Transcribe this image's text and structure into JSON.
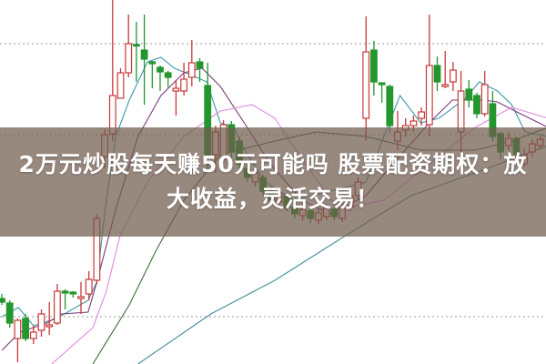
{
  "headline": "2万元炒股每天赚50元可能吗 股票配资期权：放大收益，灵活交易！",
  "colors": {
    "up": "#c8383a",
    "down": "#23962d",
    "overlay": "#705c4e",
    "grid": "#9a9a9a"
  },
  "chart_data": {
    "type": "candlestick",
    "title": "",
    "grid": true,
    "gridlines": [
      352,
      252,
      52
    ],
    "candles": [
      [
        0,
        72,
        68,
        77,
        65
      ],
      [
        1,
        67,
        45,
        70,
        40
      ],
      [
        2,
        28,
        48,
        50,
        2
      ],
      [
        3,
        50,
        28,
        55,
        25
      ],
      [
        4,
        28,
        35,
        42,
        22
      ],
      [
        5,
        37,
        55,
        60,
        30
      ],
      [
        6,
        41,
        43,
        68,
        32
      ],
      [
        7,
        45,
        80,
        88,
        43
      ],
      [
        8,
        80,
        78,
        82,
        60
      ],
      [
        9,
        79,
        77,
        80,
        73
      ],
      [
        10,
        72,
        74,
        90,
        55
      ],
      [
        11,
        77,
        93,
        102,
        70
      ],
      [
        12,
        92,
        160,
        165,
        88
      ],
      [
        13,
        228,
        252,
        258,
        215
      ],
      [
        14,
        253,
        295,
        400,
        245
      ],
      [
        15,
        292,
        320,
        325,
        292
      ],
      [
        16,
        320,
        352,
        384,
        315
      ],
      [
        17,
        351,
        350,
        376,
        310
      ],
      [
        18,
        345,
        335,
        384,
        285
      ],
      [
        19,
        332,
        330,
        333,
        303
      ],
      [
        20,
        326,
        321,
        328,
        300
      ],
      [
        21,
        320,
        315,
        322,
        304
      ],
      [
        22,
        300,
        303,
        312,
        273
      ],
      [
        23,
        300,
        313,
        331,
        295
      ],
      [
        24,
        315,
        331,
        356,
        305
      ],
      [
        25,
        332,
        325,
        336,
        310
      ],
      [
        26,
        306,
        230,
        331,
        210
      ],
      [
        27,
        230,
        255,
        262,
        210
      ],
      [
        28,
        225,
        263,
        268,
        220
      ],
      [
        29,
        263,
        233,
        267,
        225
      ],
      [
        30,
        245,
        220,
        250,
        215
      ],
      [
        31,
        215,
        205,
        220,
        200
      ],
      [
        32,
        200,
        210,
        215,
        195
      ],
      [
        33,
        205,
        190,
        208,
        185
      ],
      [
        34,
        190,
        180,
        195,
        175
      ],
      [
        35,
        178,
        188,
        192,
        172
      ],
      [
        36,
        185,
        172,
        188,
        168
      ],
      [
        37,
        172,
        165,
        176,
        160
      ],
      [
        38,
        163,
        170,
        175,
        158
      ],
      [
        39,
        168,
        160,
        171,
        155
      ],
      [
        40,
        158,
        166,
        170,
        154
      ],
      [
        41,
        162,
        172,
        176,
        158
      ],
      [
        42,
        170,
        162,
        174,
        158
      ],
      [
        43,
        160,
        175,
        178,
        156
      ],
      [
        44,
        172,
        185,
        190,
        168
      ],
      [
        45,
        185,
        200,
        205,
        180
      ],
      [
        46,
        270,
        343,
        382,
        245
      ],
      [
        47,
        345,
        310,
        355,
        295
      ],
      [
        48,
        309,
        307,
        309,
        287
      ],
      [
        49,
        305,
        262,
        307,
        255
      ],
      [
        50,
        245,
        255,
        278,
        235
      ],
      [
        51,
        257,
        262,
        270,
        250
      ],
      [
        52,
        262,
        267,
        273,
        255
      ],
      [
        53,
        270,
        277,
        282,
        262
      ],
      [
        54,
        263,
        328,
        384,
        250
      ],
      [
        55,
        328,
        310,
        338,
        300
      ],
      [
        56,
        305,
        307,
        344,
        303
      ],
      [
        57,
        310,
        323,
        332,
        300
      ],
      [
        58,
        255,
        300,
        322,
        232
      ],
      [
        59,
        302,
        290,
        312,
        282
      ],
      [
        60,
        295,
        275,
        298,
        270
      ],
      [
        61,
        275,
        307,
        322,
        272
      ],
      [
        62,
        286,
        250,
        300,
        245
      ],
      [
        63,
        253,
        233,
        255,
        225
      ],
      [
        64,
        240,
        248,
        255,
        235
      ],
      [
        65,
        248,
        230,
        250,
        225
      ],
      [
        66,
        220,
        230,
        237,
        217
      ],
      [
        67,
        233,
        242,
        247,
        228
      ],
      [
        68,
        240,
        247,
        250,
        236
      ]
    ],
    "lines": [
      {
        "color": "#3a9aa8",
        "points": [
          [
            0,
            52
          ],
          [
            2.1,
            62
          ],
          [
            4,
            42
          ],
          [
            6.9,
            50
          ],
          [
            10.9,
            70
          ],
          [
            12,
            90
          ],
          [
            13.2,
            180
          ],
          [
            14.4,
            250
          ],
          [
            16.1,
            290
          ],
          [
            18.4,
            332
          ],
          [
            20.1,
            337
          ],
          [
            21.8,
            325
          ],
          [
            24.1,
            317
          ],
          [
            25.9,
            310
          ],
          [
            27.6,
            265
          ],
          [
            29.3,
            260
          ],
          [
            31,
            230
          ],
          [
            33.3,
            200
          ],
          [
            36.8,
            180
          ],
          [
            46,
            200
          ],
          [
            50.3,
            295
          ],
          [
            52.9,
            265
          ],
          [
            55.2,
            270
          ],
          [
            58.6,
            292
          ],
          [
            60.3,
            310
          ],
          [
            62.6,
            300
          ],
          [
            64.4,
            285
          ],
          [
            66.1,
            255
          ],
          [
            69,
            250
          ]
        ]
      },
      {
        "color": "#7a3a78",
        "points": [
          [
            0,
            15
          ],
          [
            2.3,
            35
          ],
          [
            5.7,
            45
          ],
          [
            7.5,
            55
          ],
          [
            10.9,
            57
          ],
          [
            12,
            90
          ],
          [
            14.4,
            170
          ],
          [
            17.2,
            250
          ],
          [
            20.1,
            295
          ],
          [
            23,
            320
          ],
          [
            25.3,
            325
          ],
          [
            27.6,
            305
          ],
          [
            31,
            260
          ],
          [
            33.9,
            220
          ],
          [
            37.9,
            180
          ],
          [
            41.4,
            165
          ],
          [
            46,
            185
          ],
          [
            49.4,
            220
          ],
          [
            54,
            265
          ],
          [
            56.9,
            290
          ],
          [
            60.9,
            290
          ],
          [
            62.6,
            288
          ],
          [
            65.5,
            275
          ],
          [
            69,
            260
          ]
        ]
      },
      {
        "color": "#e08ae0",
        "points": [
          [
            6.3,
            0
          ],
          [
            11.5,
            40
          ],
          [
            13.2,
            80
          ],
          [
            14.9,
            140
          ],
          [
            18.4,
            200
          ],
          [
            23,
            250
          ],
          [
            27.6,
            278
          ],
          [
            31.6,
            285
          ],
          [
            34.5,
            270
          ],
          [
            37.9,
            225
          ],
          [
            42.5,
            170
          ],
          [
            48.3,
            180
          ],
          [
            54,
            220
          ],
          [
            59.8,
            260
          ],
          [
            64.4,
            282
          ],
          [
            69,
            270
          ]
        ]
      },
      {
        "color": "#3f6b3a",
        "points": [
          [
            11.5,
            0
          ],
          [
            16.1,
            65
          ],
          [
            19.5,
            125
          ],
          [
            23,
            180
          ],
          [
            27.6,
            230
          ],
          [
            34.5,
            245
          ],
          [
            39.7,
            255
          ],
          [
            46,
            250
          ],
          [
            52.9,
            235
          ],
          [
            59.8,
            235
          ],
          [
            64.4,
            245
          ],
          [
            69,
            260
          ]
        ]
      },
      {
        "color": "#3f8f9a",
        "points": [
          [
            17.2,
            0
          ],
          [
            26.4,
            55
          ],
          [
            34.5,
            92
          ],
          [
            41.4,
            130
          ],
          [
            46,
            155
          ],
          [
            51.7,
            185
          ],
          [
            59.8,
            210
          ],
          [
            69,
            240
          ]
        ]
      }
    ]
  }
}
